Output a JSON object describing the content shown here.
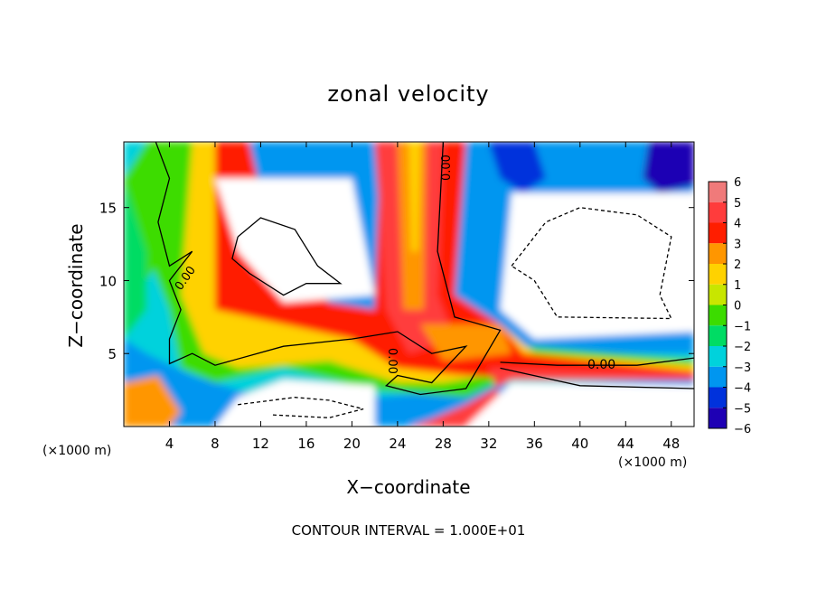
{
  "chart_data": {
    "type": "heatmap",
    "title": "zonal velocity",
    "xlabel": "X−coordinate",
    "ylabel": "Z−coordinate",
    "x_unit_label": "(×1000 m)",
    "x_unit_label_right": "(×1000 m)",
    "footer": "CONTOUR INTERVAL = 1.000E+01",
    "xlim": [
      0,
      50
    ],
    "ylim": [
      0,
      19.5
    ],
    "x_ticks": [
      4,
      8,
      12,
      16,
      20,
      24,
      28,
      32,
      36,
      40,
      44,
      48
    ],
    "x_tick_labels": [
      "4",
      "8",
      "12",
      "16",
      "20",
      "24",
      "28",
      "32",
      "36",
      "40",
      "44",
      "48"
    ],
    "y_ticks": [
      5,
      10,
      15
    ],
    "y_tick_labels": [
      "5",
      "10",
      "15"
    ],
    "colorbar": {
      "values": [
        6,
        5,
        4,
        3,
        2,
        1,
        0,
        -1,
        -2,
        -3,
        -4,
        -5,
        -6
      ],
      "labels": [
        "6",
        "5",
        "4",
        "3",
        "2",
        "1",
        "0",
        "−1",
        "−2",
        "−3",
        "−4",
        "−5",
        "−6"
      ],
      "colors": [
        "#f07a7a",
        "#ff3c3c",
        "#ff1e00",
        "#ff9600",
        "#ffd200",
        "#c8e600",
        "#3cdc00",
        "#00dc64",
        "#00d2dc",
        "#0096f0",
        "#0032dc",
        "#1e00b4",
        "#6e14a0"
      ]
    },
    "contour_labels": [
      "0.00",
      "0.00",
      "0.00",
      "0.00"
    ],
    "zero_contour_color": "#000000",
    "clipped_color": "#ffffff"
  }
}
